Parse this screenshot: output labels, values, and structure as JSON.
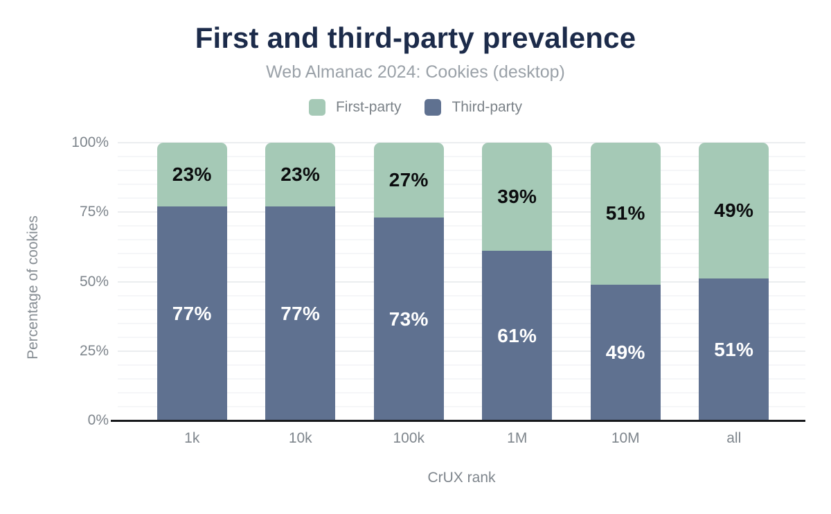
{
  "chart_data": {
    "type": "bar",
    "stacked": true,
    "title": "First and third-party prevalence",
    "subtitle": "Web Almanac 2024: Cookies (desktop)",
    "xlabel": "CrUX rank",
    "ylabel": "Percentage of cookies",
    "categories": [
      "1k",
      "10k",
      "100k",
      "1M",
      "10M",
      "all"
    ],
    "series": [
      {
        "name": "First-party",
        "color": "#a5c9b6",
        "label_color": "#0b0c0e",
        "values": [
          23,
          23,
          27,
          39,
          51,
          49
        ]
      },
      {
        "name": "Third-party",
        "color": "#5f7190",
        "label_color": "#ffffff",
        "values": [
          77,
          77,
          73,
          61,
          49,
          51
        ]
      }
    ],
    "value_suffix": "%",
    "ylim": [
      0,
      100
    ],
    "yticks": [
      {
        "label": "0%",
        "value": 0
      },
      {
        "label": "25%",
        "value": 25
      },
      {
        "label": "50%",
        "value": 50
      },
      {
        "label": "75%",
        "value": 75
      },
      {
        "label": "100%",
        "value": 100
      }
    ],
    "grid": {
      "orientation": "horizontal",
      "minor_step": 5,
      "major_step": 25,
      "minor_color": "#f5f6f8",
      "major_color": "#ebedef"
    },
    "legend_position": "top",
    "palette": {
      "title_color": "#1c2b4a",
      "subtitle_color": "#9aa1a8",
      "legend_text_color": "#7b8288",
      "axis_text_color": "#7e858c",
      "axis_title_color": "#868d93",
      "axis_line_color": "#17191c",
      "background": "#ffffff"
    }
  }
}
